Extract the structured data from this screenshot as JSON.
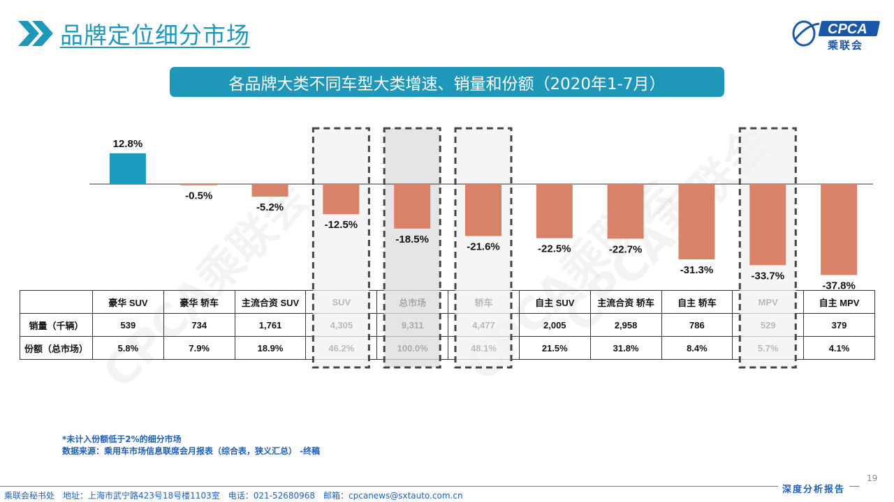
{
  "page": {
    "title": "品牌定位细分市场",
    "logo_text": "CPCA",
    "logo_cn": "乘联会",
    "subtitle": "各品牌大类不同车型大类增速、销量和份额（2020年1-7月）",
    "watermark": "CPCA乘联会",
    "page_number": "19",
    "notes": [
      "*未计入份额低于2%的细分市场",
      "数据来源：乘用车市场信息联席会月报表（综合表，狭义汇总） -终稿"
    ],
    "footer_text": "乘联会秘书处　地址：上海市武宁路423号18号楼1103室　电话：021-52680968　邮箱：cpcanews@sxtauto.com.cn",
    "footer_label": "深度分析报告"
  },
  "colors": {
    "accent": "#1f97b8",
    "positive_bar": "#1a9bc0",
    "negative_bar": "#d9826a",
    "highlight_gray": "#dcdce0",
    "highlight_light": "#f1f1f1"
  },
  "chart_data": {
    "type": "bar",
    "categories": [
      "豪华 SUV",
      "豪华 轿车",
      "主流合资 SUV",
      "SUV",
      "总市场",
      "轿车",
      "自主 SUV",
      "主流合资 轿车",
      "自主 轿车",
      "MPV",
      "自主 MPV"
    ],
    "values": [
      12.8,
      -0.5,
      -5.2,
      -12.5,
      -18.5,
      -21.6,
      -22.5,
      -22.7,
      -31.3,
      -33.7,
      -37.8
    ],
    "labels": [
      "12.8%",
      "-0.5%",
      "-5.2%",
      "-12.5%",
      "-18.5%",
      "-21.6%",
      "-22.5%",
      "-22.7%",
      "-31.3%",
      "-33.7%",
      "-37.8%"
    ],
    "unit": "%",
    "highlighted": [
      "SUV",
      "总市场",
      "轿车",
      "MPV"
    ],
    "emphasized": "总市场"
  },
  "table": {
    "rows": [
      {
        "label": "销量（千辆）",
        "values": [
          "539",
          "734",
          "1,761",
          "4,305",
          "9,311",
          "4,477",
          "2,005",
          "2,958",
          "786",
          "529",
          "379"
        ]
      },
      {
        "label": "份额（总市场）",
        "values": [
          "5.8%",
          "7.9%",
          "18.9%",
          "46.2%",
          "100.0%",
          "48.1%",
          "21.5%",
          "31.8%",
          "8.4%",
          "5.7%",
          "4.1%"
        ]
      }
    ]
  }
}
